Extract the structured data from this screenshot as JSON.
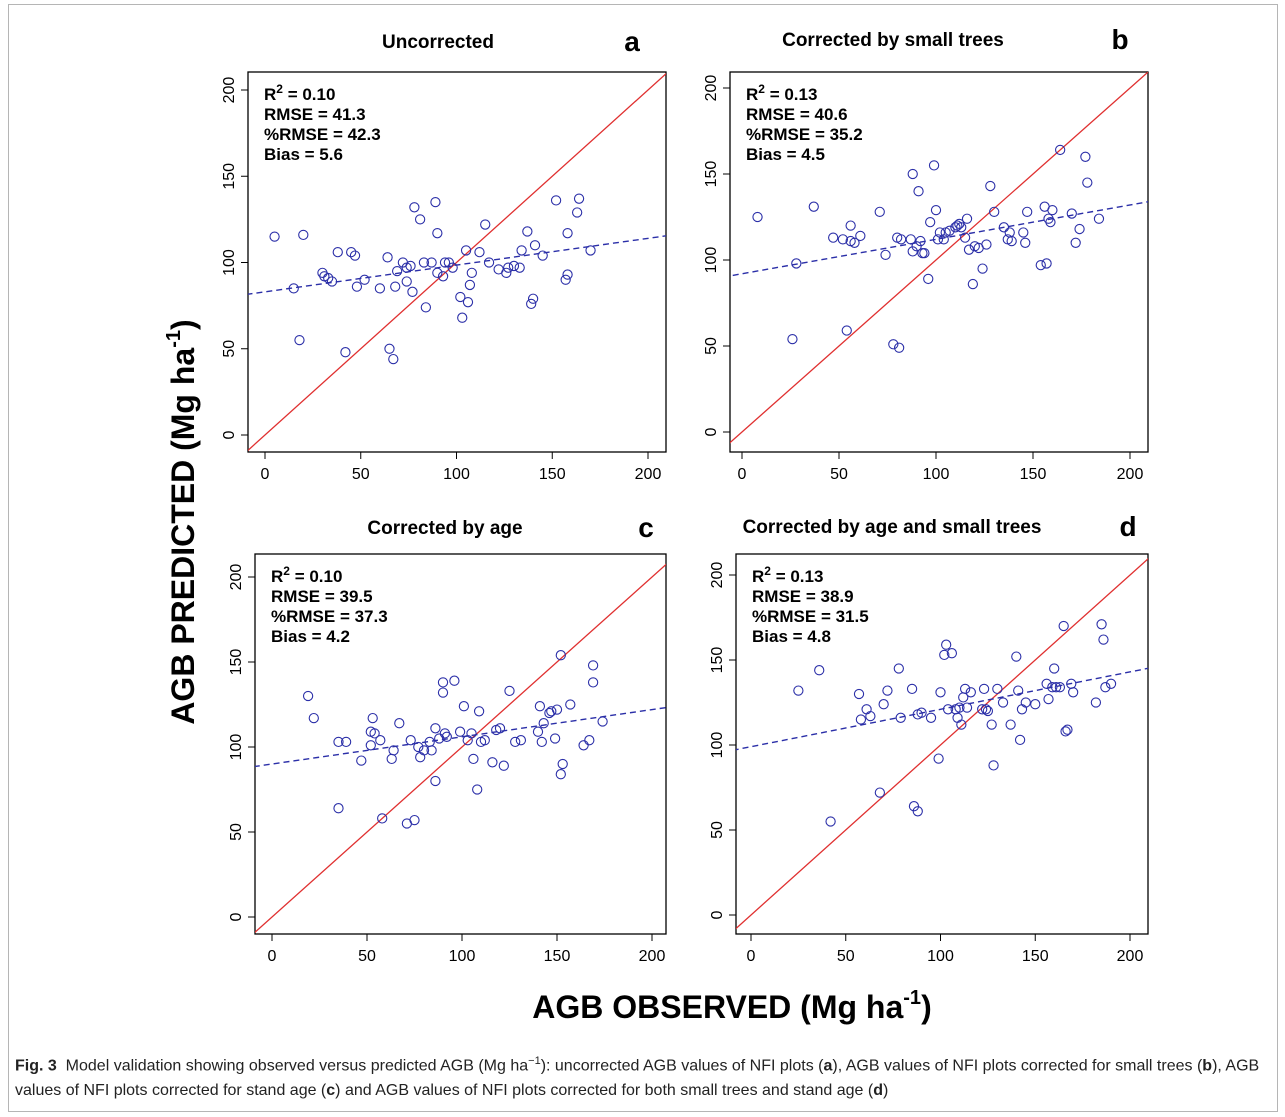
{
  "figure": {
    "ylabel": "AGB PREDICTED (Mg ha",
    "ylabel_sup": "-1",
    "ylabel_close": ")",
    "xlabel": "AGB OBSERVED (Mg ha",
    "xlabel_sup": "-1",
    "xlabel_close": ")"
  },
  "caption": {
    "label": "Fig. 3",
    "text_1": "Model validation showing observed versus predicted AGB (Mg ha",
    "text_sup": "−1",
    "text_2": "): uncorrected AGB values of NFI plots (",
    "a": "a",
    "text_3": "), AGB values of NFI plots corrected for small trees (",
    "b": "b",
    "text_4": "), AGB values of NFI plots corrected for stand age (",
    "c": "c",
    "text_5": ") and AGB values of NFI plots corrected for both small trees and stand age (",
    "d": "d",
    "text_6": ")"
  },
  "colors": {
    "identity_line": "#e03030",
    "points": "#2b2fa8",
    "regression": "#2b2fa8"
  },
  "chart_data": [
    {
      "type": "scatter",
      "title": "Uncorrected",
      "panel": "a",
      "stats": [
        "R² = 0.10",
        "RMSE = 41.3",
        "%RMSE = 42.3",
        "Bias = 5.6"
      ],
      "xlim": [
        0,
        200
      ],
      "ylim": [
        0,
        200
      ],
      "xticks": [
        0,
        50,
        100,
        150,
        200
      ],
      "yticks": [
        0,
        50,
        100,
        150,
        200
      ],
      "regression": {
        "intercept": 83,
        "slope": 0.155
      },
      "points": [
        [
          5,
          115
        ],
        [
          15,
          85
        ],
        [
          18,
          55
        ],
        [
          20,
          116
        ],
        [
          30,
          94
        ],
        [
          31,
          92
        ],
        [
          33,
          91
        ],
        [
          35,
          89
        ],
        [
          38,
          106
        ],
        [
          42,
          48
        ],
        [
          45,
          106
        ],
        [
          47,
          104
        ],
        [
          48,
          86
        ],
        [
          52,
          90
        ],
        [
          60,
          85
        ],
        [
          64,
          103
        ],
        [
          65,
          50
        ],
        [
          67,
          44
        ],
        [
          68,
          86
        ],
        [
          69,
          95
        ],
        [
          72,
          100
        ],
        [
          74,
          89
        ],
        [
          74,
          97
        ],
        [
          76,
          98
        ],
        [
          77,
          83
        ],
        [
          78,
          132
        ],
        [
          81,
          125
        ],
        [
          83,
          100
        ],
        [
          84,
          74
        ],
        [
          87,
          100
        ],
        [
          89,
          135
        ],
        [
          90,
          117
        ],
        [
          90,
          94
        ],
        [
          93,
          92
        ],
        [
          94,
          100
        ],
        [
          96,
          100
        ],
        [
          98,
          97
        ],
        [
          102,
          80
        ],
        [
          103,
          68
        ],
        [
          105,
          107
        ],
        [
          106,
          77
        ],
        [
          107,
          87
        ],
        [
          108,
          94
        ],
        [
          112,
          106
        ],
        [
          115,
          122
        ],
        [
          117,
          100
        ],
        [
          122,
          96
        ],
        [
          126,
          94
        ],
        [
          127,
          97
        ],
        [
          130,
          98
        ],
        [
          133,
          97
        ],
        [
          134,
          107
        ],
        [
          137,
          118
        ],
        [
          139,
          76
        ],
        [
          140,
          79
        ],
        [
          141,
          110
        ],
        [
          145,
          104
        ],
        [
          152,
          136
        ],
        [
          157,
          90
        ],
        [
          158,
          93
        ],
        [
          158,
          117
        ],
        [
          163,
          129
        ],
        [
          164,
          137
        ],
        [
          170,
          107
        ]
      ]
    },
    {
      "type": "scatter",
      "title": "Corrected by small trees",
      "panel": "b",
      "stats": [
        "R² = 0.13",
        "RMSE = 40.6",
        "%RMSE = 35.2",
        "Bias = 4.5"
      ],
      "xlim": [
        0,
        200
      ],
      "ylim": [
        0,
        200
      ],
      "xticks": [
        0,
        50,
        100,
        150,
        200
      ],
      "yticks": [
        0,
        50,
        100,
        150,
        200
      ],
      "regression": {
        "intercept": 92,
        "slope": 0.2
      },
      "points": [
        [
          8,
          125
        ],
        [
          26,
          54
        ],
        [
          28,
          98
        ],
        [
          37,
          131
        ],
        [
          47,
          113
        ],
        [
          52,
          112
        ],
        [
          54,
          59
        ],
        [
          56,
          111
        ],
        [
          56,
          120
        ],
        [
          58,
          110
        ],
        [
          61,
          114
        ],
        [
          71,
          128
        ],
        [
          74,
          103
        ],
        [
          78,
          51
        ],
        [
          80,
          113
        ],
        [
          81,
          49
        ],
        [
          82,
          112
        ],
        [
          87,
          112
        ],
        [
          88,
          105
        ],
        [
          88,
          150
        ],
        [
          90,
          108
        ],
        [
          91,
          140
        ],
        [
          92,
          111
        ],
        [
          93,
          104
        ],
        [
          94,
          104
        ],
        [
          96,
          89
        ],
        [
          97,
          122
        ],
        [
          99,
          155
        ],
        [
          100,
          129
        ],
        [
          101,
          112
        ],
        [
          102,
          116
        ],
        [
          104,
          112
        ],
        [
          105,
          116
        ],
        [
          107,
          117
        ],
        [
          110,
          119
        ],
        [
          111,
          120
        ],
        [
          112,
          121
        ],
        [
          113,
          119
        ],
        [
          115,
          113
        ],
        [
          116,
          124
        ],
        [
          117,
          106
        ],
        [
          119,
          86
        ],
        [
          120,
          108
        ],
        [
          122,
          107
        ],
        [
          124,
          95
        ],
        [
          126,
          109
        ],
        [
          128,
          143
        ],
        [
          130,
          128
        ],
        [
          135,
          119
        ],
        [
          137,
          112
        ],
        [
          138,
          116
        ],
        [
          139,
          111
        ],
        [
          145,
          116
        ],
        [
          146,
          110
        ],
        [
          147,
          128
        ],
        [
          154,
          97
        ],
        [
          156,
          131
        ],
        [
          157,
          98
        ],
        [
          158,
          124
        ],
        [
          159,
          122
        ],
        [
          160,
          129
        ],
        [
          164,
          164
        ],
        [
          170,
          127
        ],
        [
          172,
          110
        ],
        [
          174,
          118
        ],
        [
          177,
          160
        ],
        [
          178,
          145
        ],
        [
          184,
          124
        ]
      ]
    },
    {
      "type": "scatter",
      "title": "Corrected by age",
      "panel": "c",
      "stats": [
        "R² = 0.10",
        "RMSE = 39.5",
        "%RMSE = 37.3",
        "Bias = 4.2"
      ],
      "xlim": [
        0,
        200
      ],
      "ylim": [
        0,
        200
      ],
      "xticks": [
        0,
        50,
        100,
        150,
        200
      ],
      "yticks": [
        0,
        50,
        100,
        150,
        200
      ],
      "regression": {
        "intercept": 90,
        "slope": 0.16
      },
      "points": [
        [
          19,
          130
        ],
        [
          22,
          117
        ],
        [
          35,
          103
        ],
        [
          35,
          64
        ],
        [
          39,
          103
        ],
        [
          47,
          92
        ],
        [
          52,
          101
        ],
        [
          52,
          109
        ],
        [
          53,
          117
        ],
        [
          54,
          108
        ],
        [
          57,
          104
        ],
        [
          58,
          58
        ],
        [
          63,
          93
        ],
        [
          64,
          98
        ],
        [
          67,
          114
        ],
        [
          71,
          55
        ],
        [
          73,
          104
        ],
        [
          75,
          57
        ],
        [
          77,
          100
        ],
        [
          78,
          94
        ],
        [
          80,
          98
        ],
        [
          83,
          103
        ],
        [
          84,
          98
        ],
        [
          86,
          80
        ],
        [
          86,
          111
        ],
        [
          88,
          105
        ],
        [
          90,
          132
        ],
        [
          90,
          138
        ],
        [
          91,
          108
        ],
        [
          92,
          106
        ],
        [
          96,
          139
        ],
        [
          99,
          109
        ],
        [
          101,
          124
        ],
        [
          103,
          104
        ],
        [
          105,
          108
        ],
        [
          106,
          93
        ],
        [
          108,
          75
        ],
        [
          109,
          121
        ],
        [
          110,
          103
        ],
        [
          112,
          104
        ],
        [
          116,
          91
        ],
        [
          118,
          110
        ],
        [
          120,
          111
        ],
        [
          122,
          89
        ],
        [
          125,
          133
        ],
        [
          128,
          103
        ],
        [
          131,
          104
        ],
        [
          140,
          109
        ],
        [
          141,
          124
        ],
        [
          142,
          103
        ],
        [
          143,
          114
        ],
        [
          146,
          120
        ],
        [
          147,
          121
        ],
        [
          149,
          105
        ],
        [
          150,
          122
        ],
        [
          152,
          154
        ],
        [
          152,
          84
        ],
        [
          153,
          90
        ],
        [
          157,
          125
        ],
        [
          164,
          101
        ],
        [
          167,
          104
        ],
        [
          169,
          148
        ],
        [
          169,
          138
        ],
        [
          174,
          115
        ]
      ]
    },
    {
      "type": "scatter",
      "title": "Corrected by age and small trees",
      "panel": "d",
      "stats": [
        "R² = 0.13",
        "RMSE = 38.9",
        "%RMSE = 31.5",
        "Bias = 4.8"
      ],
      "xlim": [
        0,
        200
      ],
      "ylim": [
        0,
        200
      ],
      "xticks": [
        0,
        50,
        100,
        150,
        200
      ],
      "yticks": [
        0,
        50,
        100,
        150,
        200
      ],
      "regression": {
        "intercept": 99,
        "slope": 0.22
      },
      "points": [
        [
          25,
          132
        ],
        [
          36,
          144
        ],
        [
          42,
          55
        ],
        [
          57,
          130
        ],
        [
          58,
          115
        ],
        [
          61,
          121
        ],
        [
          63,
          117
        ],
        [
          68,
          72
        ],
        [
          70,
          124
        ],
        [
          72,
          132
        ],
        [
          78,
          145
        ],
        [
          79,
          116
        ],
        [
          85,
          133
        ],
        [
          86,
          64
        ],
        [
          88,
          118
        ],
        [
          88,
          61
        ],
        [
          90,
          119
        ],
        [
          95,
          116
        ],
        [
          99,
          92
        ],
        [
          100,
          131
        ],
        [
          102,
          153
        ],
        [
          103,
          159
        ],
        [
          104,
          121
        ],
        [
          106,
          154
        ],
        [
          108,
          121
        ],
        [
          109,
          116
        ],
        [
          110,
          122
        ],
        [
          111,
          112
        ],
        [
          112,
          128
        ],
        [
          113,
          133
        ],
        [
          114,
          122
        ],
        [
          116,
          131
        ],
        [
          122,
          121
        ],
        [
          123,
          133
        ],
        [
          124,
          121
        ],
        [
          125,
          120
        ],
        [
          127,
          112
        ],
        [
          128,
          88
        ],
        [
          130,
          133
        ],
        [
          133,
          125
        ],
        [
          137,
          112
        ],
        [
          140,
          152
        ],
        [
          141,
          132
        ],
        [
          142,
          103
        ],
        [
          143,
          121
        ],
        [
          145,
          125
        ],
        [
          150,
          124
        ],
        [
          156,
          136
        ],
        [
          157,
          127
        ],
        [
          159,
          134
        ],
        [
          160,
          145
        ],
        [
          161,
          134
        ],
        [
          163,
          134
        ],
        [
          165,
          170
        ],
        [
          166,
          108
        ],
        [
          167,
          109
        ],
        [
          169,
          136
        ],
        [
          170,
          131
        ],
        [
          182,
          125
        ],
        [
          185,
          171
        ],
        [
          186,
          162
        ],
        [
          187,
          134
        ],
        [
          190,
          136
        ]
      ]
    }
  ]
}
